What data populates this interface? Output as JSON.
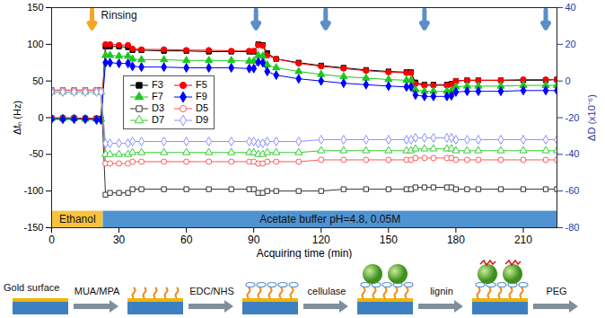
{
  "chart_data": {
    "type": "line",
    "x_label": "Acquiring time (min)",
    "y_label": "Δfₙ (Hz)",
    "y2_label": "ΔD (x10⁻⁶)",
    "xlim": [
      0,
      225
    ],
    "xticks": [
      0,
      30,
      60,
      90,
      120,
      150,
      180,
      210
    ],
    "ylim": [
      -150,
      150
    ],
    "yticks": [
      -150,
      -100,
      -50,
      0,
      50,
      100,
      150
    ],
    "y2lim": [
      -80,
      40
    ],
    "y2ticks": [
      -80,
      -60,
      -40,
      -20,
      0,
      20,
      40
    ],
    "legend": "upper left",
    "x": [
      0,
      5,
      10,
      15,
      20,
      22,
      24,
      26,
      30,
      34,
      36,
      40,
      50,
      60,
      70,
      80,
      88,
      90,
      92,
      94,
      96,
      100,
      110,
      120,
      130,
      140,
      150,
      158,
      160,
      162,
      166,
      170,
      176,
      178,
      180,
      185,
      190,
      200,
      210,
      220,
      225
    ],
    "series": [
      {
        "name": "F3",
        "color": "#000000",
        "marker": "square",
        "values": [
          -1,
          -1,
          -1,
          -1,
          -1,
          -2,
          97,
          97,
          97,
          96,
          92,
          92,
          91,
          91,
          90,
          90,
          90,
          90,
          100,
          99,
          88,
          80,
          75,
          71,
          68,
          65,
          63,
          62,
          62,
          48,
          45,
          45,
          45,
          46,
          50,
          51,
          51,
          51,
          51,
          51,
          52
        ]
      },
      {
        "name": "F5",
        "color": "#ff0000",
        "marker": "circle",
        "values": [
          0,
          0,
          0,
          -1,
          -1,
          -1,
          100,
          100,
          99,
          99,
          94,
          93,
          93,
          92,
          92,
          91,
          91,
          91,
          99,
          98,
          85,
          80,
          74,
          70,
          67,
          64,
          62,
          61,
          61,
          46,
          44,
          44,
          44,
          45,
          50,
          51,
          51,
          51,
          52,
          52,
          52
        ]
      },
      {
        "name": "F7",
        "color": "#1ec81e",
        "marker": "triangle",
        "values": [
          -1,
          -1,
          -1,
          -2,
          -2,
          -2,
          85,
          85,
          84,
          84,
          80,
          79,
          79,
          78,
          78,
          78,
          77,
          77,
          85,
          84,
          72,
          68,
          63,
          59,
          56,
          54,
          52,
          51,
          51,
          38,
          36,
          36,
          36,
          37,
          42,
          43,
          43,
          43,
          44,
          44,
          44
        ]
      },
      {
        "name": "F9",
        "color": "#0000ff",
        "marker": "diamond",
        "values": [
          -2,
          -2,
          -2,
          -2,
          -3,
          -3,
          75,
          75,
          74,
          74,
          70,
          69,
          69,
          68,
          68,
          68,
          67,
          67,
          76,
          75,
          63,
          58,
          53,
          50,
          47,
          45,
          43,
          42,
          42,
          31,
          29,
          29,
          29,
          30,
          35,
          36,
          36,
          36,
          37,
          37,
          37
        ]
      },
      {
        "name": "D3",
        "color": "#333333",
        "marker": "open square",
        "axis": "y2",
        "values": [
          -5,
          -5,
          -5,
          -5,
          -5,
          -5,
          -62,
          -61,
          -61,
          -61,
          -59,
          -59,
          -59,
          -59,
          -59,
          -59,
          -59,
          -59,
          -61,
          -61,
          -60,
          -60,
          -60,
          -60,
          -59,
          -59,
          -59,
          -59,
          -59,
          -58,
          -58,
          -58,
          -58,
          -58,
          -59,
          -59,
          -59,
          -59,
          -59,
          -59,
          -59
        ]
      },
      {
        "name": "D5",
        "color": "#ff5a5a",
        "marker": "open circle",
        "axis": "y2",
        "values": [
          -5,
          -5,
          -5,
          -5,
          -5,
          -5,
          -45,
          -45,
          -45,
          -45,
          -44,
          -44,
          -44,
          -44,
          -44,
          -44,
          -44,
          -44,
          -45,
          -45,
          -44,
          -44,
          -44,
          -43,
          -43,
          -43,
          -43,
          -43,
          -43,
          -42,
          -42,
          -42,
          -42,
          -42,
          -43,
          -43,
          -43,
          -43,
          -43,
          -43,
          -43
        ]
      },
      {
        "name": "D7",
        "color": "#33cc33",
        "marker": "open triangle",
        "axis": "y2",
        "values": [
          -6,
          -6,
          -6,
          -6,
          -6,
          -6,
          -40,
          -40,
          -40,
          -40,
          -39,
          -39,
          -39,
          -39,
          -39,
          -39,
          -39,
          -39,
          -40,
          -40,
          -39,
          -39,
          -39,
          -38,
          -38,
          -38,
          -38,
          -38,
          -38,
          -37,
          -37,
          -37,
          -37,
          -37,
          -38,
          -38,
          -38,
          -38,
          -38,
          -38,
          -38
        ]
      },
      {
        "name": "D9",
        "color": "#8f8fff",
        "marker": "open diamond",
        "axis": "y2",
        "values": [
          -6,
          -6,
          -6,
          -6,
          -6,
          -6,
          -34,
          -34,
          -34,
          -34,
          -33,
          -33,
          -33,
          -33,
          -33,
          -33,
          -33,
          -33,
          -34,
          -34,
          -33,
          -33,
          -33,
          -32,
          -32,
          -32,
          -32,
          -32,
          -32,
          -31,
          -31,
          -31,
          -31,
          -31,
          -32,
          -32,
          -32,
          -32,
          -32,
          -32,
          -32
        ]
      }
    ],
    "phases": [
      {
        "label": "Ethanol",
        "start": 0,
        "end": 23,
        "color": "#f7c33c"
      },
      {
        "label": "Acetate buffer pH=4.8, 0.05M",
        "start": 23,
        "end": 225,
        "color": "#4f93d1"
      }
    ],
    "rinsing": {
      "label": "Rinsing",
      "x": 18,
      "color": "#f5a623"
    },
    "arrows": {
      "x": [
        91,
        122,
        166,
        220
      ],
      "color": "#5b8fc9"
    }
  },
  "schematic": {
    "start": "Gold surface",
    "steps": [
      "MUA/MPA",
      "EDC/NHS",
      "cellulase",
      "lignin",
      "PEG"
    ]
  }
}
